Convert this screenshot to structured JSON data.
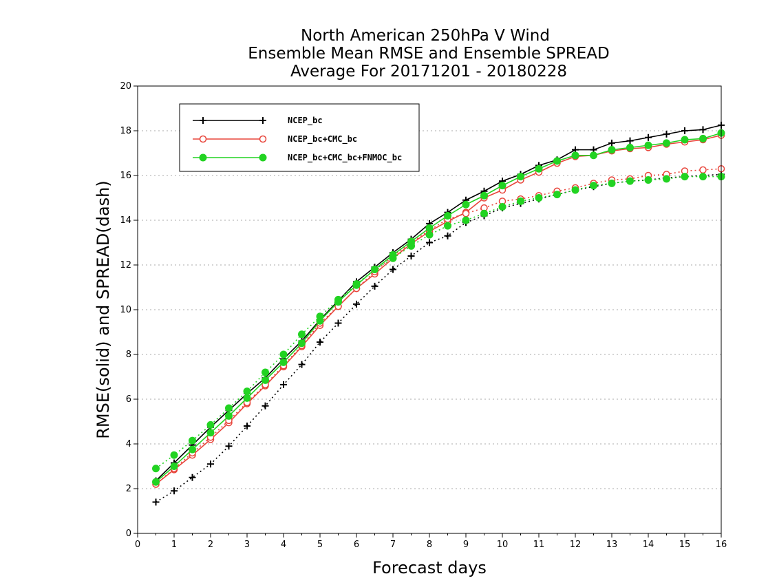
{
  "chart_data": {
    "type": "line",
    "title": [
      "North American 250hPa V Wind",
      "Ensemble Mean RMSE and Ensemble SPREAD",
      "Average For 20171201 - 20180228"
    ],
    "xlabel": "Forecast days",
    "ylabel": "RMSE(solid) and SPREAD(dash)",
    "xlim": [
      0,
      16
    ],
    "ylim": [
      0,
      20
    ],
    "xticks": [
      "0",
      "1",
      "2",
      "3",
      "4",
      "5",
      "6",
      "7",
      "8",
      "9",
      "10",
      "11",
      "12",
      "13",
      "14",
      "15",
      "16"
    ],
    "yticks": [
      "0",
      "2",
      "4",
      "6",
      "8",
      "10",
      "12",
      "14",
      "16",
      "18",
      "20"
    ],
    "grid": true,
    "legend_position": "top-left",
    "x": [
      0.5,
      1,
      1.5,
      2,
      2.5,
      3,
      3.5,
      4,
      4.5,
      5,
      5.5,
      6,
      6.5,
      7,
      7.5,
      8,
      8.5,
      9,
      9.5,
      10,
      10.5,
      11,
      11.5,
      12,
      12.5,
      13,
      13.5,
      14,
      14.5,
      15,
      15.5,
      16
    ],
    "series": [
      {
        "name": "NCEP_bc",
        "color": "#000000",
        "marker": "plus",
        "rmse": [
          2.35,
          3.15,
          3.95,
          4.75,
          5.5,
          6.25,
          6.95,
          7.8,
          8.6,
          9.55,
          10.4,
          11.25,
          11.9,
          12.55,
          13.15,
          13.85,
          14.35,
          14.9,
          15.3,
          15.75,
          16.05,
          16.45,
          16.7,
          17.15,
          17.15,
          17.45,
          17.55,
          17.7,
          17.85,
          18.0,
          18.05,
          18.25
        ],
        "spread": [
          1.4,
          1.9,
          2.5,
          3.1,
          3.9,
          4.8,
          5.7,
          6.65,
          7.55,
          8.55,
          9.4,
          10.25,
          11.05,
          11.8,
          12.4,
          13.0,
          13.3,
          13.9,
          14.2,
          14.55,
          14.75,
          14.95,
          15.15,
          15.35,
          15.5,
          15.65,
          15.75,
          15.8,
          15.9,
          15.95,
          16.0,
          16.05
        ]
      },
      {
        "name": "NCEP_bc+CMC_bc",
        "color": "#e8463c",
        "marker": "open-circle",
        "rmse": [
          2.2,
          2.85,
          3.5,
          4.2,
          4.95,
          5.8,
          6.6,
          7.45,
          8.35,
          9.3,
          10.15,
          10.95,
          11.6,
          12.3,
          12.95,
          13.5,
          13.95,
          14.35,
          15.0,
          15.35,
          15.8,
          16.15,
          16.55,
          16.85,
          16.9,
          17.1,
          17.2,
          17.25,
          17.4,
          17.5,
          17.6,
          17.8
        ],
        "spread": [
          2.2,
          2.9,
          3.6,
          4.3,
          5.05,
          5.85,
          6.65,
          7.5,
          8.4,
          9.4,
          10.15,
          10.95,
          11.7,
          12.4,
          13.0,
          13.55,
          14.05,
          14.3,
          14.55,
          14.85,
          14.95,
          15.1,
          15.3,
          15.45,
          15.65,
          15.8,
          15.85,
          16.0,
          16.05,
          16.2,
          16.25,
          16.3
        ]
      },
      {
        "name": "NCEP_bc+CMC_bc+FNMOC_bc",
        "color": "#22d322",
        "marker": "filled-circle",
        "rmse": [
          2.3,
          3.0,
          3.75,
          4.5,
          5.25,
          6.05,
          6.85,
          7.65,
          8.5,
          9.5,
          10.35,
          11.1,
          11.8,
          12.45,
          13.05,
          13.65,
          14.2,
          14.7,
          15.1,
          15.55,
          15.95,
          16.3,
          16.65,
          16.9,
          16.9,
          17.15,
          17.25,
          17.35,
          17.45,
          17.6,
          17.65,
          17.9
        ],
        "spread": [
          2.9,
          3.5,
          4.15,
          4.85,
          5.6,
          6.35,
          7.2,
          8.0,
          8.9,
          9.7,
          10.45,
          11.15,
          11.8,
          12.3,
          12.85,
          13.35,
          13.75,
          14.0,
          14.3,
          14.6,
          14.85,
          15.0,
          15.15,
          15.35,
          15.55,
          15.65,
          15.75,
          15.8,
          15.85,
          15.95,
          15.95,
          15.95
        ]
      }
    ]
  }
}
